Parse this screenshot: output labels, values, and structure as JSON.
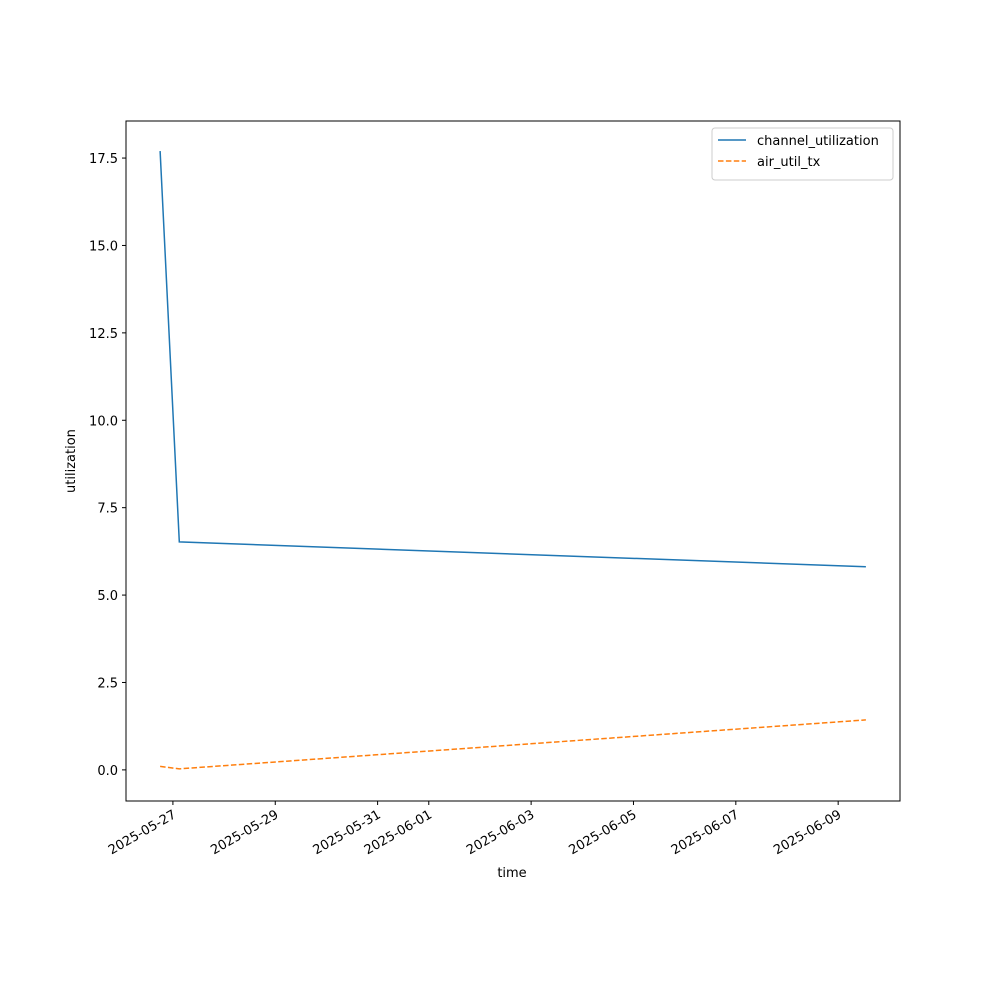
{
  "chart_data": {
    "type": "line",
    "x_label": "time",
    "y_label": "utilization",
    "x": [
      "2025-05-26T18:00",
      "2025-05-27T03:00",
      "2025-06-09T13:00"
    ],
    "series": [
      {
        "name": "channel_utilization",
        "color": "#1f77b4",
        "linestyle": "solid",
        "values": [
          17.7,
          6.52,
          5.81
        ]
      },
      {
        "name": "air_util_tx",
        "color": "#ff7f0e",
        "linestyle": "dashed",
        "values": [
          0.1,
          0.03,
          1.43
        ]
      }
    ],
    "xlim": [
      "2025-05-26T02:00",
      "2025-06-10T05:00"
    ],
    "xticks": [
      "2025-05-27",
      "2025-05-29",
      "2025-05-31",
      "2025-06-01",
      "2025-06-03",
      "2025-06-05",
      "2025-06-07",
      "2025-06-09"
    ],
    "ylim": [
      -0.89,
      18.56
    ],
    "yticks": [
      {
        "value": 0,
        "label": "0.0"
      },
      {
        "value": 2.5,
        "label": "2.5"
      },
      {
        "value": 5,
        "label": "5.0"
      },
      {
        "value": 7.5,
        "label": "7.5"
      },
      {
        "value": 10,
        "label": "10.0"
      },
      {
        "value": 12.5,
        "label": "12.5"
      },
      {
        "value": 15,
        "label": "15.0"
      },
      {
        "value": 17.5,
        "label": "17.5"
      }
    ],
    "legend": "upper right",
    "grid": false
  }
}
